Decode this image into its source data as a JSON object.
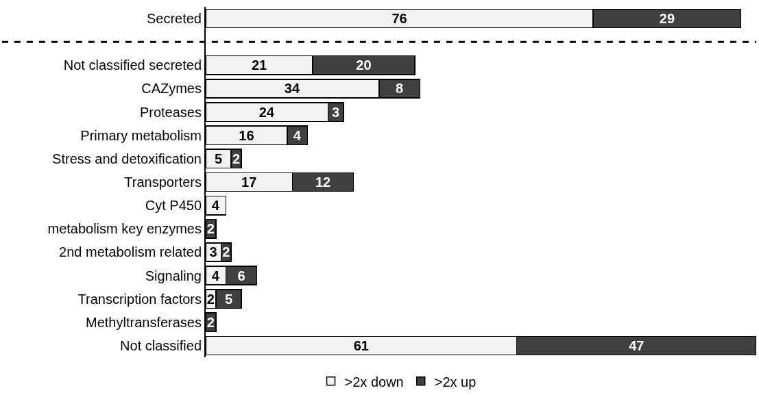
{
  "chart_data": {
    "type": "bar",
    "orientation": "horizontal",
    "stacked": true,
    "data_labels": true,
    "legend": "bottom",
    "grid": false,
    "xlim": [
      0,
      108
    ],
    "tick_labels": "y",
    "categories": [
      "Secreted",
      null,
      "Not classified secreted",
      "CAZymes",
      "Proteases",
      "Primary metabolism",
      "Stress and detoxification",
      "Transporters",
      "Cyt P450",
      "metabolism key enzymes",
      "2nd metabolism related",
      "Signaling",
      "Transcription factors",
      "Methyltransferases",
      "Not classified"
    ],
    "series": [
      {
        "name": ">2x down",
        "color": "#f2f2f2",
        "values": [
          76,
          null,
          21,
          34,
          24,
          16,
          5,
          17,
          4,
          null,
          3,
          4,
          2,
          null,
          61
        ]
      },
      {
        "name": ">2x up",
        "color": "#404040",
        "values": [
          29,
          null,
          20,
          8,
          3,
          4,
          2,
          12,
          null,
          2,
          2,
          6,
          5,
          2,
          47
        ]
      }
    ]
  }
}
